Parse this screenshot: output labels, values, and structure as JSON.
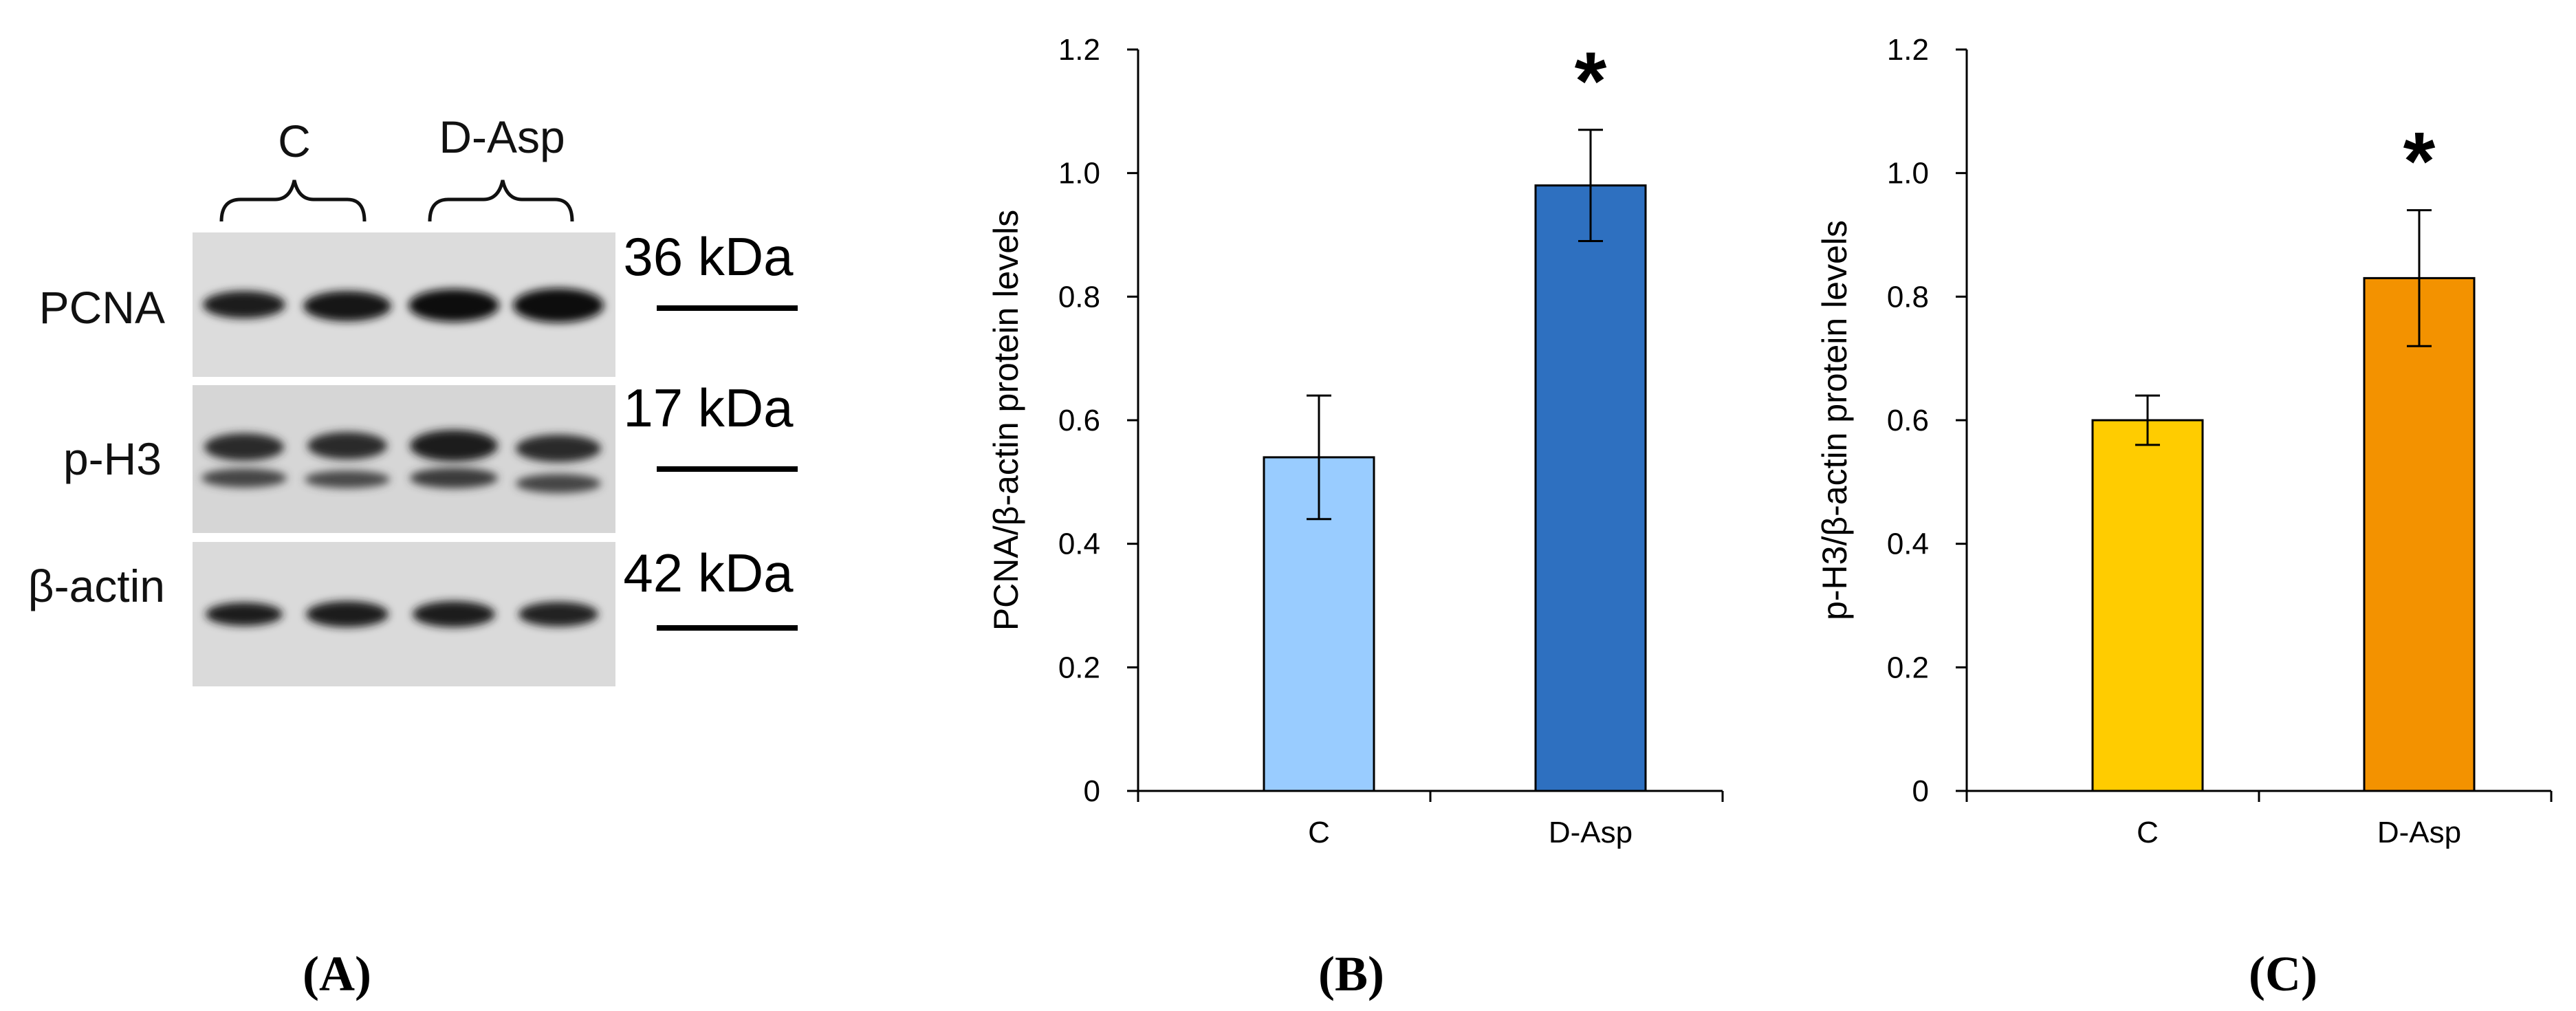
{
  "panels": {
    "a": "(A)",
    "b": "(B)",
    "c": "(C)"
  },
  "blot": {
    "groups": [
      "C",
      "D-Asp"
    ],
    "rows": [
      {
        "label": "PCNA",
        "kda": "36 kDa"
      },
      {
        "label": "p-H3",
        "kda": "17 kDa"
      },
      {
        "label": "β-actin",
        "kda": "42 kDa"
      }
    ]
  },
  "chart_data": [
    {
      "type": "bar",
      "title": "",
      "xlabel": "",
      "ylabel": "PCNA/β-actin protein levels",
      "categories": [
        "C",
        "D-Asp"
      ],
      "values": [
        0.54,
        0.98
      ],
      "errors": [
        0.1,
        0.09
      ],
      "colors": [
        "#99CCFF",
        "#2E70C0"
      ],
      "ylim": [
        0,
        1.2
      ],
      "yticks": [
        0,
        0.2,
        0.4,
        0.6,
        0.8,
        1.0,
        1.2
      ],
      "ytick_labels": [
        "0",
        "0.2",
        "0.4",
        "0.6",
        "0.8",
        "1.0",
        "1.2"
      ],
      "significance": [
        "",
        "*"
      ]
    },
    {
      "type": "bar",
      "title": "",
      "xlabel": "",
      "ylabel": "p-H3/β-actin protein levels",
      "categories": [
        "C",
        "D-Asp"
      ],
      "values": [
        0.6,
        0.83
      ],
      "errors": [
        0.04,
        0.11
      ],
      "colors": [
        "#FFCC00",
        "#F39200"
      ],
      "ylim": [
        0,
        1.2
      ],
      "yticks": [
        0,
        0.2,
        0.4,
        0.6,
        0.8,
        1.0,
        1.2
      ],
      "ytick_labels": [
        "0",
        "0.2",
        "0.4",
        "0.6",
        "0.8",
        "1.0",
        "1.2"
      ],
      "significance": [
        "",
        "*"
      ]
    }
  ]
}
